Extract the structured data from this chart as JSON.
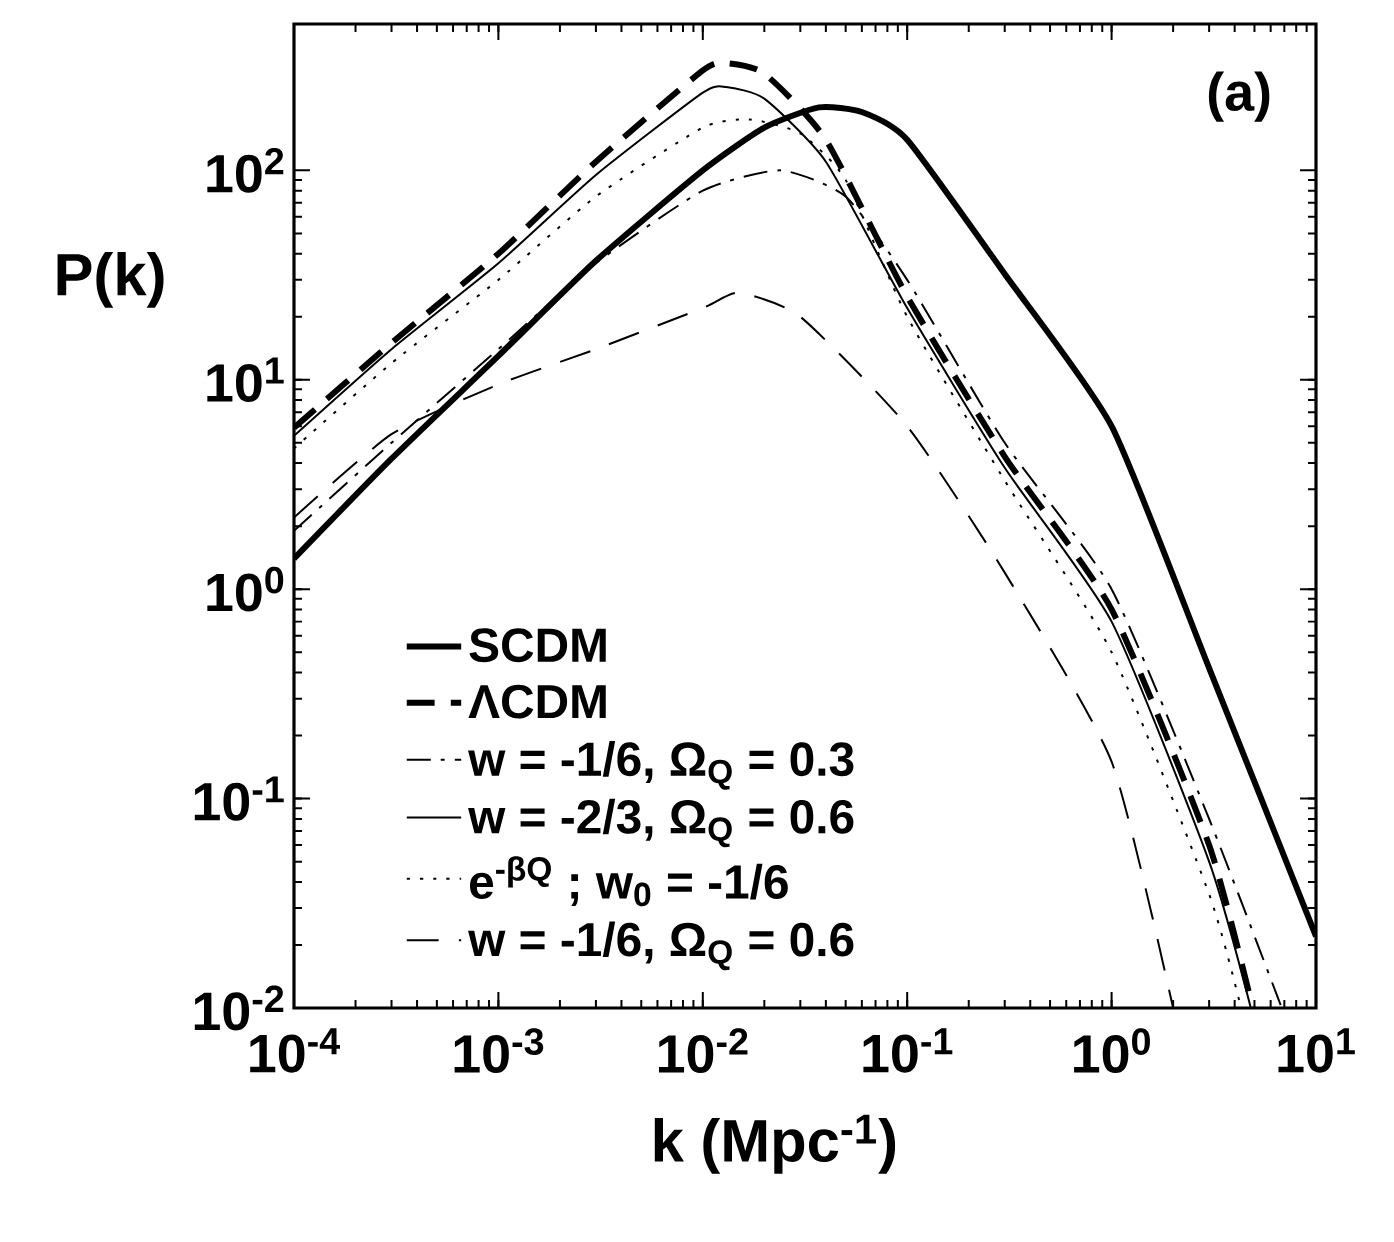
{
  "chart_data": {
    "type": "line",
    "xlabel": "k (Mpc$^{-1}$)",
    "ylabel": "P(k)",
    "log": "xy",
    "legend": "bottom left",
    "grid": false,
    "annotations": [
      "(a)"
    ],
    "xlim": [
      0.0001,
      10
    ],
    "ylim": [
      0.01,
      500
    ],
    "xticks": [
      {
        "value": 0.0001,
        "label": "10$^{-4}$"
      },
      {
        "value": 0.001,
        "label": "10$^{-3}$"
      },
      {
        "value": 0.01,
        "label": "10$^{-2}$"
      },
      {
        "value": 0.1,
        "label": "10$^{-1}$"
      },
      {
        "value": 1,
        "label": "10$^{0}$"
      },
      {
        "value": 10,
        "label": "10$^{1}$"
      }
    ],
    "yticks": [
      {
        "value": 0.01,
        "label": "10$^{-2}$"
      },
      {
        "value": 0.1,
        "label": "10$^{-1}$"
      },
      {
        "value": 1,
        "label": "10$^{0}$"
      },
      {
        "value": 10,
        "label": "10$^{1}$"
      },
      {
        "value": 100,
        "label": "10$^{2}$"
      }
    ],
    "series": [
      {
        "name": "SCDM",
        "color": "#000000",
        "line_style": "solid",
        "x": [
          0.0001,
          0.0003,
          0.001,
          0.003,
          0.01,
          0.02,
          0.037,
          0.06,
          0.1,
          0.3,
          1,
          3,
          10
        ],
        "values": [
          1.4,
          4.2,
          13,
          37,
          100,
          160,
          200,
          190,
          140,
          32,
          6,
          0.42,
          0.022
        ]
      },
      {
        "name": "ΛCDM",
        "color": "#000000",
        "line_style": "dashed",
        "x": [
          0.0001,
          0.0003,
          0.001,
          0.003,
          0.01,
          0.013,
          0.02,
          0.04,
          0.1,
          0.3,
          1,
          3,
          4.9
        ],
        "values": [
          5.9,
          15,
          40,
          110,
          300,
          325,
          290,
          140,
          25,
          4.3,
          0.8,
          0.06,
          0.01
        ]
      },
      {
        "name": "w = -1/6, Ω$_{Q}$ = 0.3",
        "color": "#000000",
        "line_style": "dashdot",
        "x": [
          0.0001,
          0.0003,
          0.001,
          0.003,
          0.01,
          0.024,
          0.05,
          0.1,
          0.3,
          1,
          3,
          6.8
        ],
        "values": [
          1.9,
          5,
          14,
          36,
          80,
          100,
          75,
          30,
          5,
          1.0,
          0.08,
          0.01
        ]
      },
      {
        "name": "w = -2/3, Ω$_{Q}$ = 0.6",
        "color": "#000000",
        "line_style": "solid",
        "x": [
          0.0001,
          0.0003,
          0.001,
          0.003,
          0.01,
          0.013,
          0.02,
          0.04,
          0.1,
          0.3,
          1,
          3,
          4.8
        ],
        "values": [
          5.4,
          14,
          36,
          95,
          235,
          250,
          220,
          110,
          22,
          3.8,
          0.7,
          0.05,
          0.01
        ]
      },
      {
        "name": "e$^{-βQ}$ ; w$_{0}$ = -1/6",
        "color": "#000000",
        "line_style": "dotted",
        "x": [
          0.0001,
          0.0003,
          0.001,
          0.003,
          0.01,
          0.017,
          0.03,
          0.05,
          0.1,
          0.3,
          1,
          3,
          4.3
        ],
        "values": [
          4.7,
          12,
          30,
          75,
          160,
          175,
          150,
          90,
          20,
          3.3,
          0.5,
          0.035,
          0.01
        ]
      },
      {
        "name": "w = -1/6, Ω$_{Q}$ = 0.6",
        "color": "#000000",
        "line_style": "longdash",
        "x": [
          0.0001,
          0.0003,
          0.001,
          0.003,
          0.01,
          0.015,
          0.03,
          0.1,
          0.3,
          1,
          2
        ],
        "values": [
          2.2,
          5.5,
          9.5,
          14,
          22,
          26,
          20,
          6,
          1.2,
          0.15,
          0.01
        ]
      }
    ]
  }
}
